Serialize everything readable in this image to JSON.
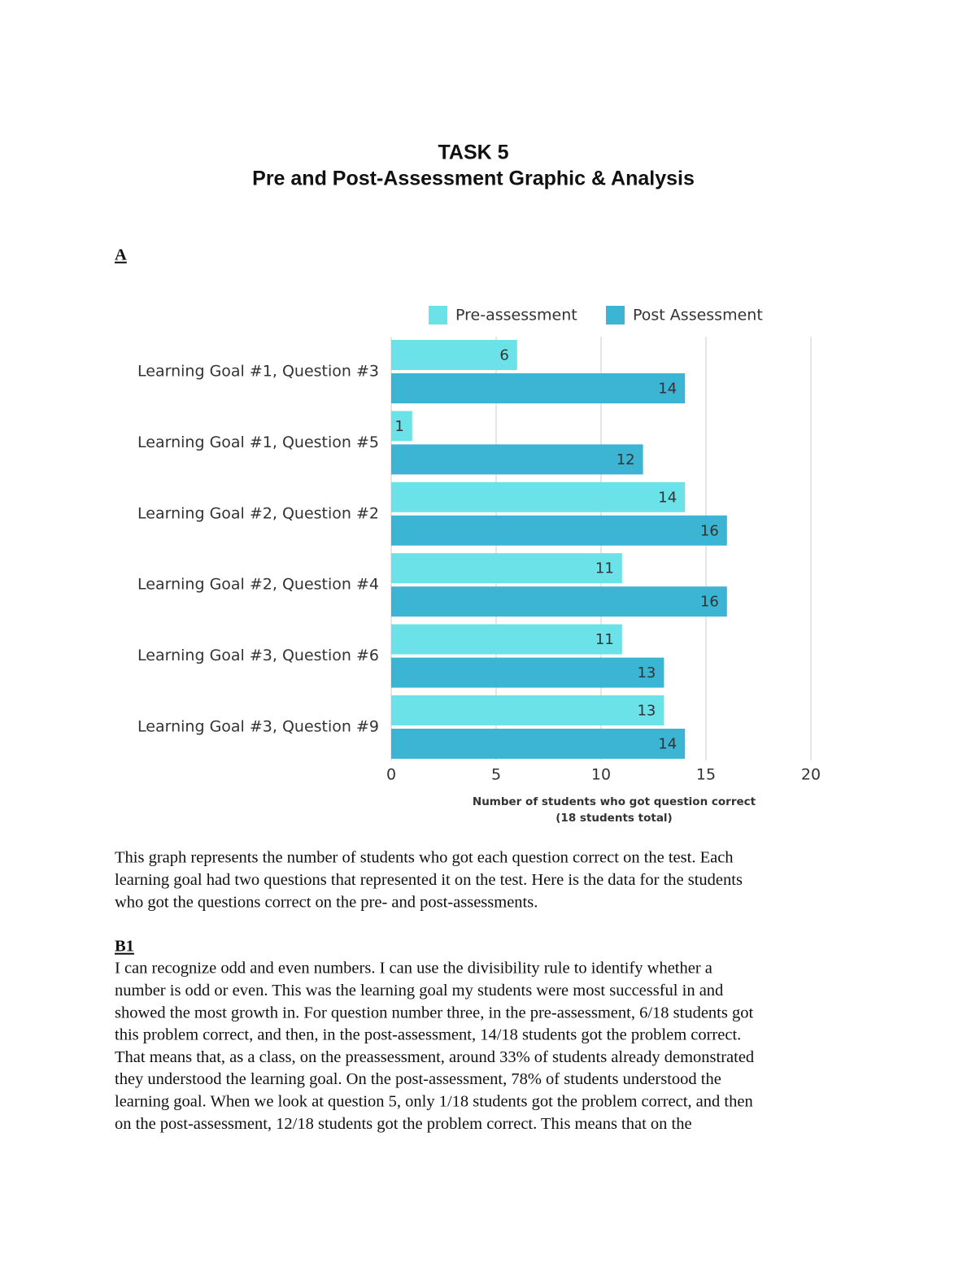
{
  "header": {
    "title": "TASK 5",
    "subtitle": "Pre and Post-Assessment Graphic & Analysis"
  },
  "section_a": {
    "heading": "A",
    "lines": [
      "This graph represents the number of students who got each question correct on the test. Each",
      "learning goal had two questions that represented it on the test. Here is the data for the students",
      "who got the questions correct on the pre- and post-assessments."
    ]
  },
  "chart_data": {
    "type": "bar",
    "orientation": "horizontal",
    "categories": [
      "Learning Goal #1, Question #3",
      "Learning Goal #1, Question #5",
      "Learning Goal #2, Question #2",
      "Learning Goal #2, Question #4",
      "Learning Goal #3, Question #6",
      "Learning Goal #3, Question #9"
    ],
    "series": [
      {
        "name": "Pre-assessment",
        "color": "#6ae2e8",
        "values": [
          6,
          1,
          14,
          11,
          11,
          13
        ]
      },
      {
        "name": "Post Assessment",
        "color": "#3cb4d4",
        "values": [
          14,
          12,
          16,
          16,
          13,
          14
        ]
      }
    ],
    "xlim": [
      0,
      20
    ],
    "xticks": [
      0,
      5,
      10,
      15,
      20
    ],
    "grid": true,
    "xlabel": [
      "Number of students who got question correct",
      "(18 students total)"
    ],
    "legend": "top"
  },
  "section_b1": {
    "heading": "B1",
    "lines": [
      "I can recognize odd and even numbers. I can use the divisibility rule to identify whether a",
      "number is odd or even. This was the learning goal my students were most successful in and",
      "showed the most growth in. For question number three, in the pre-assessment, 6/18 students got",
      "this problem correct, and then, in the post-assessment, 14/18 students got the problem correct.",
      "That means that, as a class, on the preassessment, around 33% of students already demonstrated",
      "they understood the learning goal. On the post-assessment, 78% of students understood the",
      "learning goal. When we look at question 5, only 1/18 students got the problem correct, and then",
      "on the post-assessment, 12/18 students got the problem correct. This means that on the"
    ]
  }
}
